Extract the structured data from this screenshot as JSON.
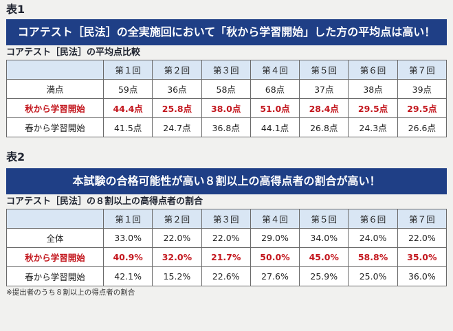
{
  "table1": {
    "label": "表1",
    "banner": "コアテスト［民法］の全実施回において「秋から学習開始」した方の平均点は高い！",
    "subtitle": "コアテスト［民法］の平均点比較",
    "columns": [
      "第１回",
      "第２回",
      "第３回",
      "第４回",
      "第５回",
      "第６回",
      "第７回"
    ],
    "rows": [
      {
        "label": "満点",
        "highlight": false,
        "values": [
          "59点",
          "36点",
          "58点",
          "68点",
          "37点",
          "38点",
          "39点"
        ]
      },
      {
        "label": "秋から学習開始",
        "highlight": true,
        "values": [
          "44.4点",
          "25.8点",
          "38.0点",
          "51.0点",
          "28.4点",
          "29.5点",
          "29.5点"
        ]
      },
      {
        "label": "春から学習開始",
        "highlight": false,
        "values": [
          "41.5点",
          "24.7点",
          "36.8点",
          "44.1点",
          "26.8点",
          "24.3点",
          "26.6点"
        ]
      }
    ]
  },
  "table2": {
    "label": "表2",
    "banner": "本試験の合格可能性が高い８割以上の高得点者の割合が高い！",
    "subtitle": "コアテスト［民法］の８割以上の高得点者の割合",
    "columns": [
      "第１回",
      "第２回",
      "第３回",
      "第４回",
      "第５回",
      "第６回",
      "第７回"
    ],
    "rows": [
      {
        "label": "全体",
        "highlight": false,
        "values": [
          "33.0%",
          "22.0%",
          "22.0%",
          "29.0%",
          "34.0%",
          "24.0%",
          "22.0%"
        ]
      },
      {
        "label": "秋から学習開始",
        "highlight": true,
        "values": [
          "40.9%",
          "32.0%",
          "21.7%",
          "50.0%",
          "45.0%",
          "58.8%",
          "35.0%"
        ]
      },
      {
        "label": "春から学習開始",
        "highlight": false,
        "values": [
          "42.1%",
          "15.2%",
          "22.6%",
          "27.6%",
          "25.9%",
          "25.0%",
          "36.0%"
        ]
      }
    ],
    "note": "※提出者のうち８割以上の得点者の割合"
  },
  "colors": {
    "banner_bg": "#1f3f86",
    "header_bg": "#d9e6f4",
    "highlight_text": "#c3161d"
  }
}
